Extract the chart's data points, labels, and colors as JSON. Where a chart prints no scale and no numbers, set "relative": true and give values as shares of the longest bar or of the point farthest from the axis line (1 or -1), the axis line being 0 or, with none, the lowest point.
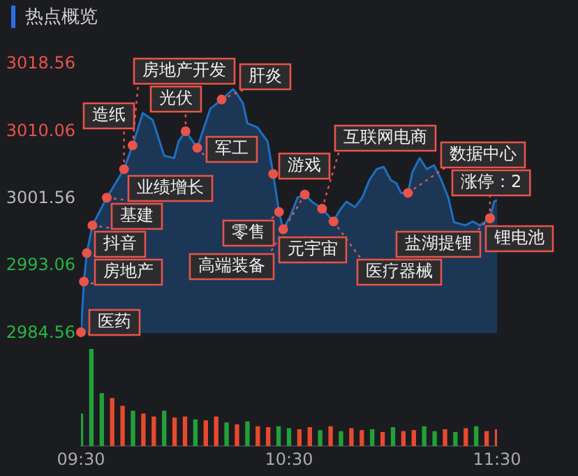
{
  "chart_data": [
    {
      "type": "area",
      "title": "热点概览",
      "color": "#1f6fc0",
      "xlim": [
        9.5,
        11.5
      ],
      "ylim": [
        2984.56,
        3018.56
      ],
      "yticks": [
        2984.56,
        2993.06,
        3001.56,
        3010.06,
        3018.56
      ],
      "tick_labels": "y",
      "marker": "none",
      "grid": false,
      "legend": false,
      "x": [
        9.5,
        9.514,
        9.528,
        9.555,
        9.624,
        9.707,
        9.748,
        9.797,
        9.845,
        9.9,
        9.948,
        9.969,
        10.003,
        10.059,
        10.121,
        10.176,
        10.231,
        10.245,
        10.279,
        10.3,
        10.348,
        10.397,
        10.424,
        10.452,
        10.472,
        10.507,
        10.541,
        10.576,
        10.61,
        10.659,
        10.714,
        10.741,
        10.776,
        10.817,
        10.852,
        10.886,
        10.921,
        10.955,
        10.99,
        11.017,
        11.038,
        11.072,
        11.093,
        11.128,
        11.162,
        11.197,
        11.231,
        11.266,
        11.293,
        11.348,
        11.383,
        11.417,
        11.466,
        11.486,
        11.5
      ],
      "values": [
        2984.7,
        2991.1,
        2994.7,
        2998.2,
        3001.7,
        3005.3,
        3008.3,
        3012.4,
        3011.5,
        3007.0,
        3006.7,
        3008.8,
        3010.1,
        3008.0,
        3012.9,
        3014.1,
        3015.4,
        3015.0,
        3013.6,
        3011.1,
        3010.6,
        3008.8,
        3004.7,
        2999.9,
        2997.7,
        2999.4,
        3001.7,
        3002.1,
        3001.2,
        3000.3,
        2998.7,
        3000.0,
        3001.2,
        3000.5,
        3001.7,
        3003.9,
        3005.3,
        3005.6,
        3003.9,
        3003.5,
        3002.3,
        3002.3,
        3004.9,
        3006.7,
        3005.3,
        3005.8,
        3004.0,
        3001.7,
        2998.6,
        2998.2,
        2998.7,
        2998.2,
        2999.1,
        3001.2,
        3001.4
      ],
      "annotations": [
        {
          "text": "锂电池",
          "x": 11.466,
          "y": 2999.1
        },
        {
          "text": "涨停：2",
          "x": 11.466,
          "y": 2999.1
        },
        {
          "text": "盐湖提锂",
          "x": 11.466,
          "y": 2999.1
        },
        {
          "text": "医药",
          "x": 9.5,
          "y": 2984.7
        },
        {
          "text": "房地产",
          "x": 9.514,
          "y": 2991.1
        },
        {
          "text": "抖音",
          "x": 9.528,
          "y": 2994.7
        },
        {
          "text": "基建",
          "x": 9.555,
          "y": 2998.2
        },
        {
          "text": "业绩增长",
          "x": 9.624,
          "y": 3001.7
        },
        {
          "text": "造纸",
          "x": 9.707,
          "y": 3005.3
        },
        {
          "text": "房地产开发",
          "x": 9.748,
          "y": 3008.3
        },
        {
          "text": "光伏",
          "x": 10.003,
          "y": 3010.1
        },
        {
          "text": "军工",
          "x": 10.059,
          "y": 3008.0
        },
        {
          "text": "肝炎",
          "x": 10.176,
          "y": 3014.1
        },
        {
          "text": "游戏",
          "x": 10.424,
          "y": 3004.7
        },
        {
          "text": "零售",
          "x": 10.452,
          "y": 2999.9
        },
        {
          "text": "元宇宙",
          "x": 10.472,
          "y": 2997.7
        },
        {
          "text": "高端装备",
          "x": 10.576,
          "y": 3002.1
        },
        {
          "text": "互联网电商",
          "x": 10.659,
          "y": 3000.3
        },
        {
          "text": "医疗器械",
          "x": 10.714,
          "y": 2998.7
        },
        {
          "text": "数据中心",
          "x": 11.072,
          "y": 3002.3
        }
      ]
    },
    {
      "type": "bar",
      "relative": true,
      "xlim": [
        9.5,
        11.5
      ],
      "xticks": [
        {
          "value": 9.5,
          "label": "09:30"
        },
        {
          "value": 10.5,
          "label": "10:30"
        },
        {
          "value": 11.5,
          "label": "11:30"
        }
      ],
      "grid": false,
      "legend": false,
      "x": [
        9.5,
        9.55,
        9.6,
        9.65,
        9.7,
        9.75,
        9.8,
        9.85,
        9.9,
        9.95,
        10.0,
        10.05,
        10.1,
        10.15,
        10.2,
        10.25,
        10.3,
        10.35,
        10.4,
        10.45,
        10.5,
        10.55,
        10.6,
        10.65,
        10.7,
        10.75,
        10.8,
        10.85,
        10.9,
        10.95,
        11.0,
        11.05,
        11.1,
        11.15,
        11.2,
        11.25,
        11.3,
        11.35,
        11.4,
        11.45,
        11.5
      ],
      "values": [
        0.33,
        1.0,
        0.54,
        0.49,
        0.41,
        0.36,
        0.33,
        0.3,
        0.36,
        0.29,
        0.3,
        0.27,
        0.26,
        0.3,
        0.24,
        0.22,
        0.25,
        0.2,
        0.19,
        0.2,
        0.18,
        0.17,
        0.19,
        0.16,
        0.2,
        0.15,
        0.18,
        0.16,
        0.17,
        0.14,
        0.19,
        0.15,
        0.16,
        0.2,
        0.15,
        0.17,
        0.14,
        0.18,
        0.2,
        0.15,
        0.17
      ],
      "colors": [
        "#22a13a",
        "#22a13a",
        "#22a13a",
        "#e84a2f",
        "#e84a2f",
        "#22a13a",
        "#e84a2f",
        "#e84a2f",
        "#22a13a",
        "#e84a2f",
        "#e84a2f",
        "#22a13a",
        "#e84a2f",
        "#e84a2f",
        "#22a13a",
        "#e84a2f",
        "#22a13a",
        "#e84a2f",
        "#e84a2f",
        "#22a13a",
        "#22a13a",
        "#e84a2f",
        "#e84a2f",
        "#22a13a",
        "#e84a2f",
        "#22a13a",
        "#e84a2f",
        "#e84a2f",
        "#22a13a",
        "#e84a2f",
        "#22a13a",
        "#e84a2f",
        "#e84a2f",
        "#22a13a",
        "#22a13a",
        "#e84a2f",
        "#22a13a",
        "#e84a2f",
        "#22a13a",
        "#e84a2f",
        "#e84a2f"
      ]
    }
  ]
}
